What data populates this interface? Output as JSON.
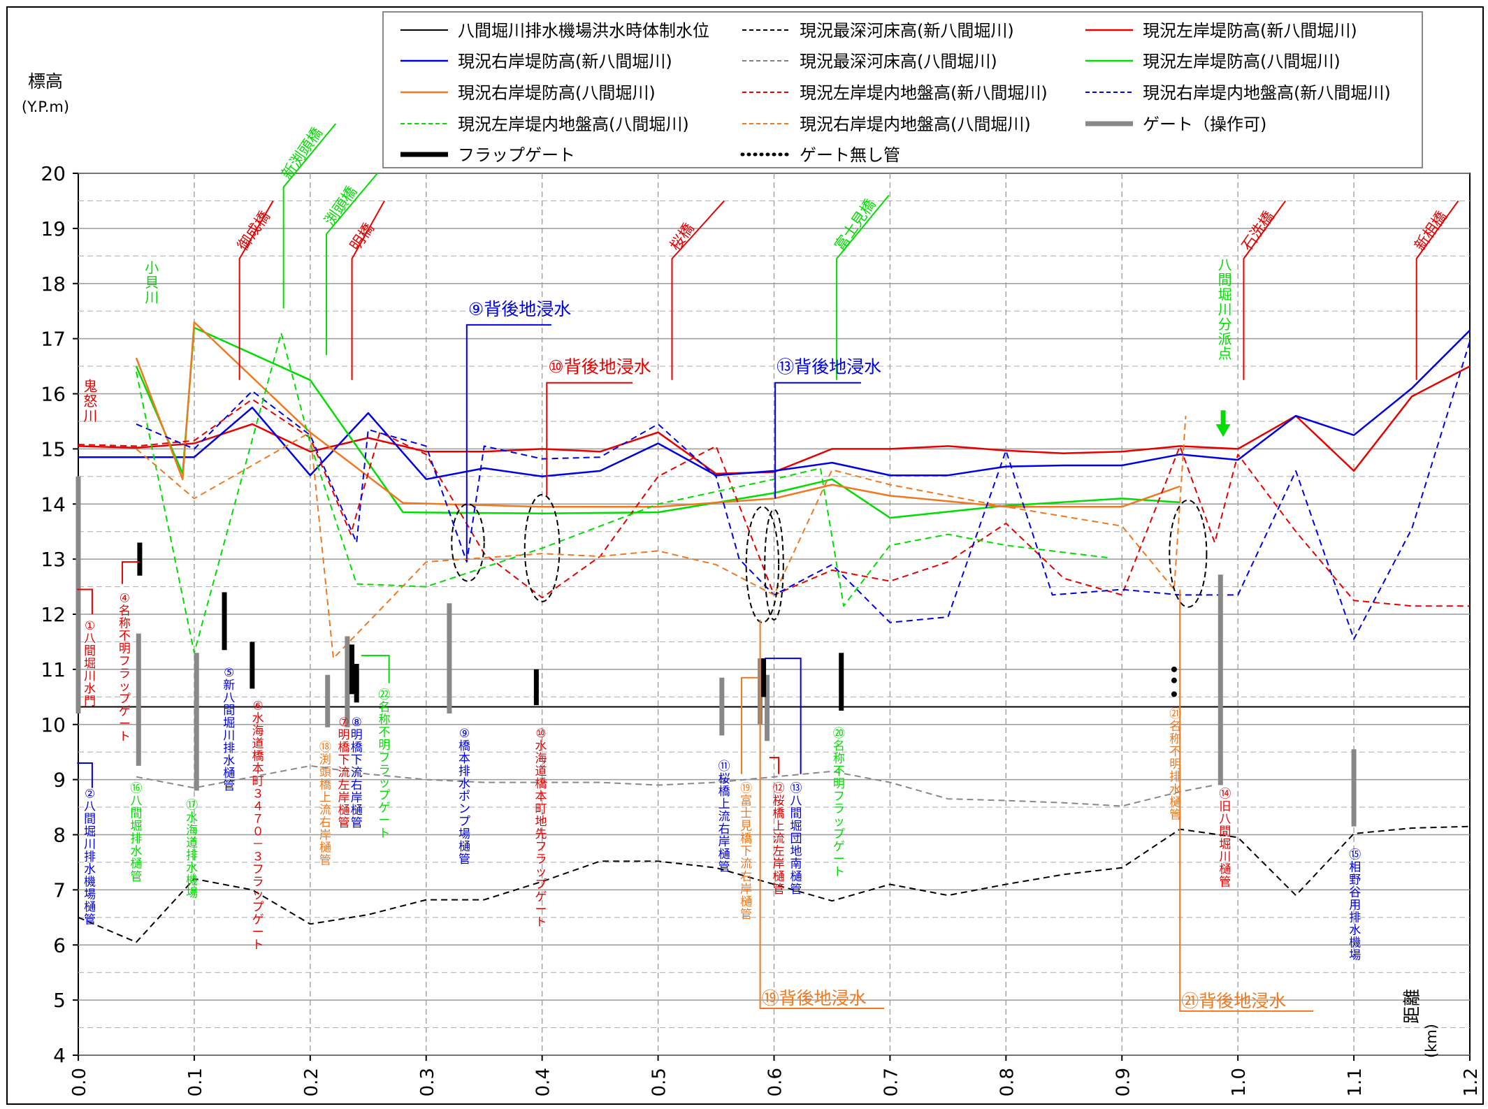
{
  "chart_data": {
    "type": "line",
    "title": "",
    "ylabel": "標高",
    "ylabel_unit": "(Y.P.m)",
    "xlabel": "距離",
    "xlabel_unit": "(km)",
    "xlim": [
      0,
      1.2
    ],
    "ylim": [
      4,
      20
    ],
    "grid": true,
    "x_ticks": [
      "0.0",
      "0.1",
      "0.2",
      "0.3",
      "0.4",
      "0.5",
      "0.6",
      "0.7",
      "0.8",
      "0.9",
      "1.0",
      "1.1",
      "1.2"
    ],
    "y_ticks": [
      "4",
      "5",
      "6",
      "7",
      "8",
      "9",
      "10",
      "11",
      "12",
      "13",
      "14",
      "15",
      "16",
      "17",
      "18",
      "19",
      "20"
    ],
    "legend_position": "top",
    "legend": [
      {
        "label": "八間堀川排水機場洪水時体制水位",
        "color": "#000000",
        "style": "solid",
        "width": 2
      },
      {
        "label": "現況最深河床高(新八間堀川)",
        "color": "#000000",
        "style": "dash",
        "width": 2
      },
      {
        "label": "現況左岸堤防高(新八間堀川)",
        "color": "#e60000",
        "style": "solid",
        "width": 2.5
      },
      {
        "label": "現況右岸堤防高(新八間堀川)",
        "color": "#0000e6",
        "style": "solid",
        "width": 2.5
      },
      {
        "label": "現況最深河床高(八間堀川)",
        "color": "#808080",
        "style": "dash",
        "width": 2
      },
      {
        "label": "現況左岸堤防高(八間堀川)",
        "color": "#00dd00",
        "style": "solid",
        "width": 2.5
      },
      {
        "label": "現況右岸堤防高(八間堀川)",
        "color": "#f07820",
        "style": "solid",
        "width": 2.5
      },
      {
        "label": "現況左岸堤内地盤高(新八間堀川)",
        "color": "#e60000",
        "style": "dash",
        "width": 2
      },
      {
        "label": "現況右岸堤内地盤高(新八間堀川)",
        "color": "#0000e6",
        "style": "dash",
        "width": 2
      },
      {
        "label": "現況左岸堤内地盤高(八間堀川)",
        "color": "#00dd00",
        "style": "dash",
        "width": 2
      },
      {
        "label": "現況右岸堤内地盤高(八間堀川)",
        "color": "#f07820",
        "style": "dash",
        "width": 2
      },
      {
        "label": "ゲート（操作可)",
        "color": "#888888",
        "style": "thick",
        "width": 7
      },
      {
        "label": "フラップゲート",
        "color": "#000000",
        "style": "thick",
        "width": 7
      },
      {
        "label": "ゲート無し管",
        "color": "#000000",
        "style": "dot",
        "width": 5
      }
    ],
    "series": [
      {
        "name": "八間堀川排水機場洪水時体制水位",
        "color": "#000000",
        "style": "solid",
        "width": 2,
        "x": [
          0.0,
          1.2
        ],
        "y": [
          10.32,
          10.32
        ]
      },
      {
        "name": "現況最深河床高(新八間堀川)",
        "color": "#000000",
        "style": "dash",
        "width": 2,
        "x": [
          0.0,
          0.05,
          0.1,
          0.15,
          0.2,
          0.25,
          0.3,
          0.35,
          0.4,
          0.45,
          0.5,
          0.55,
          0.6,
          0.65,
          0.7,
          0.75,
          0.8,
          0.85,
          0.9,
          0.95,
          1.0,
          1.05,
          1.1,
          1.15,
          1.2
        ],
        "y": [
          6.5,
          6.05,
          7.2,
          7.0,
          6.38,
          6.55,
          6.82,
          6.82,
          7.15,
          7.52,
          7.52,
          7.4,
          7.1,
          6.8,
          7.1,
          6.9,
          7.1,
          7.28,
          7.4,
          8.1,
          7.95,
          6.9,
          8.02,
          8.12,
          8.15
        ]
      },
      {
        "name": "現況最深河床高(八間堀川)",
        "color": "#888888",
        "style": "dash",
        "width": 2,
        "x": [
          0.05,
          0.1,
          0.15,
          0.2,
          0.25,
          0.3,
          0.35,
          0.4,
          0.45,
          0.5,
          0.55,
          0.6,
          0.65,
          0.7,
          0.75,
          0.8,
          0.85,
          0.9,
          0.95,
          0.98
        ],
        "y": [
          9.05,
          8.85,
          9.05,
          9.25,
          9.1,
          9.0,
          8.95,
          8.95,
          8.95,
          8.9,
          8.95,
          9.05,
          9.15,
          8.95,
          8.65,
          8.62,
          8.58,
          8.52,
          8.78,
          8.9
        ]
      },
      {
        "name": "現況左岸堤防高(新八間堀川)",
        "color": "#e60000",
        "style": "solid",
        "width": 2.5,
        "x": [
          0.0,
          0.05,
          0.1,
          0.15,
          0.2,
          0.25,
          0.3,
          0.35,
          0.4,
          0.45,
          0.5,
          0.55,
          0.6,
          0.65,
          0.7,
          0.75,
          0.8,
          0.85,
          0.9,
          0.95,
          1.0,
          1.05,
          1.1,
          1.15,
          1.2
        ],
        "y": [
          15.05,
          15.02,
          15.1,
          15.45,
          14.95,
          15.2,
          14.95,
          14.95,
          15.0,
          14.95,
          15.3,
          14.55,
          14.58,
          15.0,
          15.0,
          15.05,
          14.97,
          14.92,
          14.95,
          15.05,
          15.0,
          15.6,
          14.6,
          15.95,
          16.5
        ]
      },
      {
        "name": "現況右岸堤防高(新八間堀川)",
        "color": "#0000e6",
        "style": "solid",
        "width": 2.5,
        "x": [
          0.0,
          0.05,
          0.1,
          0.15,
          0.2,
          0.25,
          0.3,
          0.35,
          0.4,
          0.45,
          0.5,
          0.55,
          0.6,
          0.65,
          0.7,
          0.75,
          0.8,
          0.85,
          0.9,
          0.95,
          1.0,
          1.05,
          1.1,
          1.15,
          1.2
        ],
        "y": [
          14.85,
          14.85,
          14.85,
          15.75,
          14.52,
          15.65,
          14.45,
          14.65,
          14.5,
          14.6,
          15.1,
          14.52,
          14.6,
          14.75,
          14.52,
          14.52,
          14.68,
          14.7,
          14.7,
          14.9,
          14.8,
          15.6,
          15.25,
          16.1,
          17.15
        ]
      },
      {
        "name": "現況左岸堤防高(八間堀川)",
        "color": "#00dd00",
        "style": "solid",
        "width": 2.5,
        "x": [
          0.05,
          0.09,
          0.1,
          0.2,
          0.28,
          0.4,
          0.5,
          0.6,
          0.65,
          0.7,
          0.8,
          0.9,
          0.95
        ],
        "y": [
          16.5,
          14.55,
          17.2,
          16.25,
          13.85,
          13.83,
          13.85,
          14.2,
          14.45,
          13.75,
          13.97,
          14.1,
          14.03
        ]
      },
      {
        "name": "現況右岸堤防高(八間堀川)",
        "color": "#f07820",
        "style": "solid",
        "width": 2.5,
        "x": [
          0.05,
          0.09,
          0.1,
          0.2,
          0.28,
          0.4,
          0.5,
          0.6,
          0.65,
          0.7,
          0.8,
          0.9,
          0.95
        ],
        "y": [
          16.65,
          14.45,
          17.3,
          15.3,
          14.02,
          13.95,
          13.95,
          14.1,
          14.35,
          14.15,
          13.95,
          13.95,
          14.32
        ]
      },
      {
        "name": "現況左岸堤内地盤高(新八間堀川)",
        "color": "#e60000",
        "style": "dash",
        "width": 2,
        "x": [
          0.0,
          0.05,
          0.1,
          0.15,
          0.2,
          0.235,
          0.26,
          0.3,
          0.35,
          0.4,
          0.45,
          0.5,
          0.55,
          0.6,
          0.65,
          0.7,
          0.75,
          0.8,
          0.85,
          0.9,
          0.95,
          0.98,
          1.0,
          1.05,
          1.1,
          1.15,
          1.2
        ],
        "y": [
          15.08,
          15.05,
          15.15,
          15.9,
          15.2,
          13.45,
          15.3,
          14.9,
          13.1,
          12.3,
          13.05,
          14.5,
          15.05,
          12.35,
          12.8,
          12.6,
          12.95,
          13.65,
          12.65,
          12.35,
          15.05,
          13.3,
          14.9,
          13.5,
          12.25,
          12.15,
          12.15
        ]
      },
      {
        "name": "現況右岸堤内地盤高(新八間堀川)",
        "color": "#0000e6",
        "style": "dash",
        "width": 2,
        "x": [
          0.05,
          0.1,
          0.15,
          0.2,
          0.24,
          0.25,
          0.3,
          0.335,
          0.35,
          0.4,
          0.45,
          0.5,
          0.55,
          0.57,
          0.6,
          0.65,
          0.7,
          0.75,
          0.8,
          0.84,
          0.9,
          0.95,
          1.0,
          1.05,
          1.1,
          1.15,
          1.2
        ],
        "y": [
          15.45,
          15.0,
          16.05,
          15.25,
          13.3,
          15.35,
          15.05,
          12.95,
          15.05,
          14.82,
          14.85,
          15.45,
          14.5,
          13.0,
          12.35,
          12.9,
          11.85,
          11.95,
          14.97,
          12.35,
          12.45,
          12.35,
          12.35,
          14.6,
          11.55,
          13.55,
          16.95
        ]
      },
      {
        "name": "現況左岸堤内地盤高(八間堀川)",
        "color": "#00dd00",
        "style": "dash",
        "width": 2,
        "x": [
          0.05,
          0.1,
          0.175,
          0.2,
          0.24,
          0.3,
          0.4,
          0.5,
          0.6,
          0.64,
          0.66,
          0.7,
          0.75,
          0.8,
          0.89
        ],
        "y": [
          16.4,
          11.3,
          17.1,
          15.1,
          12.55,
          12.5,
          13.2,
          14.0,
          14.45,
          14.65,
          12.15,
          13.25,
          13.45,
          13.25,
          13.02
        ]
      },
      {
        "name": "現況右岸堤内地盤高(八間堀川)",
        "color": "#f07820",
        "style": "dash",
        "width": 2,
        "x": [
          0.05,
          0.1,
          0.2,
          0.22,
          0.3,
          0.4,
          0.45,
          0.5,
          0.55,
          0.6,
          0.65,
          0.7,
          0.8,
          0.9,
          0.945,
          0.955
        ],
        "y": [
          15.0,
          14.1,
          15.3,
          11.2,
          12.95,
          13.1,
          13.05,
          13.15,
          12.9,
          12.35,
          14.62,
          14.35,
          13.95,
          13.6,
          12.45,
          15.6
        ]
      }
    ],
    "gates_operable": [
      {
        "x": 0.0,
        "y0": 10.2,
        "y1": 14.5
      },
      {
        "x": 0.052,
        "y0": 9.25,
        "y1": 11.65
      },
      {
        "x": 0.102,
        "y0": 8.8,
        "y1": 11.3
      },
      {
        "x": 0.215,
        "y0": 9.95,
        "y1": 10.9
      },
      {
        "x": 0.232,
        "y0": 9.95,
        "y1": 11.6
      },
      {
        "x": 0.32,
        "y0": 10.2,
        "y1": 12.2
      },
      {
        "x": 0.555,
        "y0": 9.8,
        "y1": 10.85
      },
      {
        "x": 0.588,
        "y0": 10.0,
        "y1": 11.2
      },
      {
        "x": 0.594,
        "y0": 9.7,
        "y1": 10.9
      },
      {
        "x": 0.985,
        "y0": 8.9,
        "y1": 12.72
      },
      {
        "x": 1.1,
        "y0": 8.15,
        "y1": 9.55
      }
    ],
    "flap_gates": [
      {
        "x": 0.053,
        "y0": 12.7,
        "y1": 13.3
      },
      {
        "x": 0.126,
        "y0": 11.35,
        "y1": 12.4
      },
      {
        "x": 0.15,
        "y0": 10.65,
        "y1": 11.5
      },
      {
        "x": 0.236,
        "y0": 10.55,
        "y1": 11.45
      },
      {
        "x": 0.24,
        "y0": 10.4,
        "y1": 11.1
      },
      {
        "x": 0.395,
        "y0": 10.35,
        "y1": 11.0
      },
      {
        "x": 0.591,
        "y0": 10.5,
        "y1": 11.2
      },
      {
        "x": 0.658,
        "y0": 10.25,
        "y1": 11.3
      }
    ],
    "no_gate_pipes": [
      {
        "x": 0.945,
        "y": [
          11.0,
          10.8,
          10.55
        ]
      }
    ],
    "ellipses": [
      {
        "cx": 0.336,
        "cy": 13.3,
        "rx": 0.014,
        "ry": 0.7
      },
      {
        "cx": 0.4,
        "cy": 13.2,
        "rx": 0.015,
        "ry": 0.97
      },
      {
        "cx": 0.59,
        "cy": 12.9,
        "rx": 0.014,
        "ry": 1.05
      },
      {
        "cx": 0.6,
        "cy": 12.9,
        "rx": 0.008,
        "ry": 1.0
      },
      {
        "cx": 0.957,
        "cy": 13.1,
        "rx": 0.016,
        "ry": 0.97
      }
    ],
    "bridges": [
      {
        "label": "御成橋",
        "color": "#e60000",
        "x": 0.139,
        "y0": 16.25,
        "y1": 18.45,
        "y2": 19.5,
        "x2": 0.168
      },
      {
        "label": "新渕頭橋",
        "color": "#00dd00",
        "x": 0.177,
        "y0": 17.55,
        "y1": 19.75,
        "y2": 20.9,
        "x2": 0.222
      },
      {
        "label": "渕頭橋",
        "color": "#00dd00",
        "x": 0.214,
        "y0": 16.7,
        "y1": 18.9,
        "y2": 20.0,
        "x2": 0.258
      },
      {
        "label": "明橋",
        "color": "#e60000",
        "x": 0.236,
        "y0": 16.25,
        "y1": 18.45,
        "y2": 19.5,
        "x2": 0.264
      },
      {
        "label": "桜橋",
        "color": "#e60000",
        "x": 0.512,
        "y0": 16.25,
        "y1": 18.45,
        "y2": 19.5,
        "x2": 0.557
      },
      {
        "label": "富士見橋",
        "color": "#00dd00",
        "x": 0.654,
        "y0": 16.25,
        "y1": 18.45,
        "y2": 19.6,
        "x2": 0.699
      },
      {
        "label": "石洗橋",
        "color": "#e60000",
        "x": 1.005,
        "y0": 16.25,
        "y1": 18.45,
        "y2": 19.5,
        "x2": 1.041
      },
      {
        "label": "新相橋",
        "color": "#e60000",
        "x": 1.154,
        "y0": 16.25,
        "y1": 18.45,
        "y2": 19.5,
        "x2": 1.19
      }
    ],
    "river_labels": [
      {
        "label": "小貝川",
        "color": "#00dd00",
        "x": 0.055,
        "y": 18.2
      },
      {
        "label": "鬼怒川",
        "color": "#e60000",
        "x": 0.002,
        "y": 16.05
      }
    ],
    "branch_point": {
      "label": "八間堀川分派点",
      "color": "#00dd00",
      "x": 0.987,
      "y": 18.25
    },
    "inundation_labels": [
      {
        "label": "⑨背後地浸水",
        "color": "#0000e6",
        "x_line": 0.335,
        "y_line0": 13.0,
        "y_line1": 17.25,
        "x_end": 0.408
      },
      {
        "label": "⑩背後地浸水",
        "color": "#e60000",
        "x_line": 0.404,
        "y_line0": 14.15,
        "y_line1": 16.2,
        "x_end": 0.478
      },
      {
        "label": "⑬背後地浸水",
        "color": "#0000e6",
        "x_line": 0.601,
        "y_line0": 14.1,
        "y_line1": 16.2,
        "x_end": 0.675
      },
      {
        "label": "⑲背後地浸水",
        "color": "#f07820",
        "x_line": 0.588,
        "y_line0": 11.9,
        "y_line1": 4.85,
        "x_end": 0.695,
        "below": true
      },
      {
        "label": "㉑背後地浸水",
        "color": "#f07820",
        "x_line": 0.95,
        "y_line0": 12.45,
        "y_line1": 4.8,
        "x_end": 1.065,
        "below": true
      }
    ],
    "facilities": [
      {
        "label": "①八間堀川水門",
        "color": "#e60000",
        "x": 0.01,
        "y": 11.95,
        "conn": {
          "x": 0.012,
          "y0": 12.0,
          "y1": 12.45,
          "x_end": -0.001
        }
      },
      {
        "label": "②八間堀川排水機場樋管",
        "color": "#0000e6",
        "x": 0.01,
        "y": 8.9,
        "conn": {
          "x": 0.012,
          "y0": 8.85,
          "y1": 9.3,
          "x_end": -0.001
        }
      },
      {
        "label": "④名称不明フラップゲート",
        "color": "#e60000",
        "x": 0.04,
        "y": 12.45,
        "conn": {
          "x": 0.038,
          "y0": 12.55,
          "y1": 12.95,
          "x_end": 0.053
        }
      },
      {
        "label": "⑤新八間堀川排水樋管",
        "color": "#0000e6",
        "x": 0.13,
        "y": 11.1
      },
      {
        "label": "⑥水海道橋本町３４７０－３フラップゲート",
        "color": "#e60000",
        "x": 0.155,
        "y": 10.5
      },
      {
        "label": "⑦明橋下流左岸樋管",
        "color": "#e60000",
        "x": 0.229,
        "y": 10.2
      },
      {
        "label": "⑧明橋下流右岸樋管",
        "color": "#0000e6",
        "x": 0.24,
        "y": 10.2
      },
      {
        "label": "⑨橋本排水ポンプ場樋管",
        "color": "#0000e6",
        "x": 0.333,
        "y": 10.0
      },
      {
        "label": "⑩水海道橋本町地先フラップゲート",
        "color": "#e60000",
        "x": 0.399,
        "y": 10.0
      },
      {
        "label": "⑪桜橋上流右岸樋管",
        "color": "#0000e6",
        "x": 0.557,
        "y": 9.4
      },
      {
        "label": "⑫桜橋上流左岸樋管",
        "color": "#e60000",
        "x": 0.604,
        "y": 9.0,
        "conn": {
          "x": 0.604,
          "y0": 9.1,
          "y1": 9.4,
          "x_end": 0.596
        }
      },
      {
        "label": "⑬八間堀団地南樋管",
        "color": "#0000e6",
        "x": 0.619,
        "y": 9.0,
        "conn": {
          "x": 0.623,
          "y0": 9.1,
          "y1": 11.2,
          "x_end": 0.592
        }
      },
      {
        "label": "⑭旧八間堀川樋管",
        "color": "#e60000",
        "x": 0.989,
        "y": 8.9
      },
      {
        "label": "⑮相野谷用排水機場",
        "color": "#0000e6",
        "x": 1.101,
        "y": 7.8
      },
      {
        "label": "⑯八間堀排水樋管",
        "color": "#00dd00",
        "x": 0.05,
        "y": 9.0
      },
      {
        "label": "⑰水海道排水機場",
        "color": "#00dd00",
        "x": 0.098,
        "y": 8.7
      },
      {
        "label": "⑱渕頭橋上流右岸樋管",
        "color": "#f07820",
        "x": 0.213,
        "y": 9.75
      },
      {
        "label": "⑲富士見橋下流右岸樋管",
        "color": "#f07820",
        "x": 0.576,
        "y": 9.0,
        "conn": {
          "x": 0.572,
          "y0": 9.1,
          "y1": 10.85,
          "x_end": 0.586
        }
      },
      {
        "label": "⑳名称不明フラップゲート",
        "color": "#00dd00",
        "x": 0.656,
        "y": 10.0
      },
      {
        "label": "㉑名称不明排水樋管",
        "color": "#f07820",
        "x": 0.946,
        "y": 10.35
      },
      {
        "label": "㉒名称不明フラップゲート",
        "color": "#00dd00",
        "x": 0.264,
        "y": 10.7,
        "conn": {
          "x": 0.268,
          "y0": 10.75,
          "y1": 11.25,
          "x_end": 0.244
        }
      }
    ]
  }
}
